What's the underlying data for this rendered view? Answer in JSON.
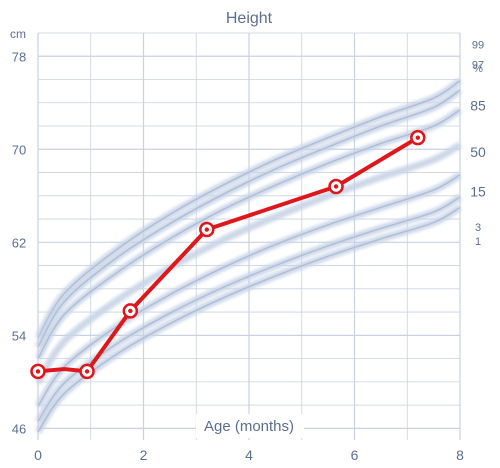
{
  "chart_data": {
    "type": "line",
    "title": "Height",
    "xlabel": "Age (months)",
    "ylabel": "cm",
    "xlim": [
      0,
      8
    ],
    "ylim": [
      45,
      80
    ],
    "x_ticks": [
      0,
      2,
      4,
      6,
      8
    ],
    "y_ticks": [
      46,
      54,
      62,
      70,
      78
    ],
    "grid": true,
    "percentile_header": "%",
    "percentiles": [
      {
        "name": "99",
        "values": [
          53.8,
          57.6,
          61.4,
          64.4,
          66.9,
          69.1,
          71.0,
          72.8,
          74.4,
          75.9
        ]
      },
      {
        "name": "97",
        "values": [
          53.0,
          56.9,
          60.7,
          63.6,
          66.1,
          68.3,
          70.2,
          72.0,
          73.6,
          75.1
        ]
      },
      {
        "name": "85",
        "values": [
          52.0,
          55.8,
          59.4,
          62.3,
          64.8,
          66.9,
          68.8,
          70.5,
          72.0,
          73.4
        ]
      },
      {
        "name": "50",
        "values": [
          49.9,
          53.5,
          57.0,
          59.8,
          62.2,
          64.2,
          66.0,
          67.6,
          69.1,
          70.4
        ]
      },
      {
        "name": "15",
        "values": [
          47.9,
          51.3,
          54.8,
          57.5,
          59.8,
          61.8,
          63.5,
          65.0,
          66.5,
          67.8
        ]
      },
      {
        "name": "3",
        "values": [
          46.6,
          49.9,
          53.3,
          55.9,
          58.1,
          60.0,
          61.7,
          63.2,
          64.6,
          65.9
        ]
      },
      {
        "name": "1",
        "values": [
          45.7,
          49.0,
          52.4,
          55.0,
          57.2,
          59.1,
          60.8,
          62.3,
          63.7,
          65.0
        ]
      }
    ],
    "percentile_x": [
      0,
      0.5,
      1.5,
      2.5,
      3.5,
      4.5,
      5.5,
      6.5,
      7.5,
      8
    ],
    "series": [
      {
        "name": "",
        "x": [
          0,
          0.5,
          0.93,
          1.75,
          3.2,
          5.65,
          7.2
        ],
        "y": [
          50.9,
          51.1,
          50.9,
          56.1,
          63.1,
          66.8,
          71.0
        ]
      }
    ],
    "colors": {
      "measured": "#e0161b",
      "curve": "#b9c6dc",
      "grid": "#c9d2e2",
      "text": "#5b6f93"
    }
  }
}
